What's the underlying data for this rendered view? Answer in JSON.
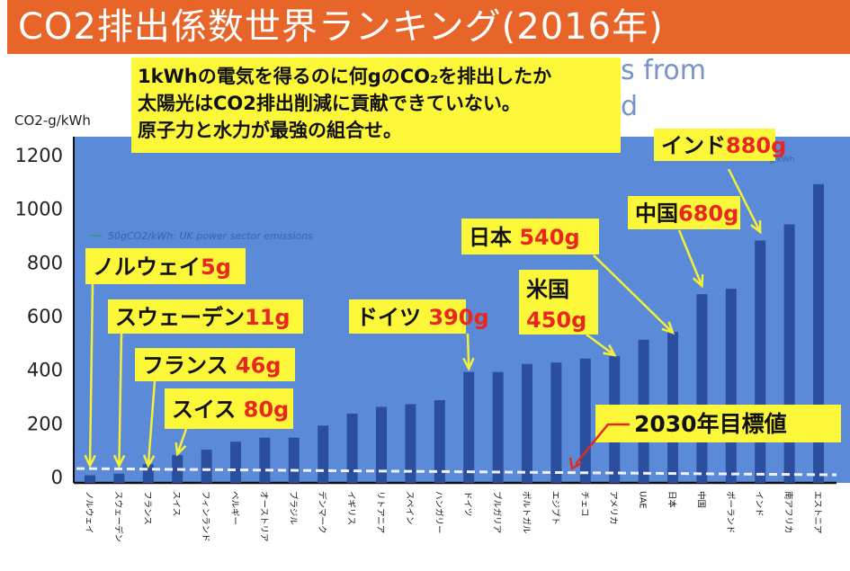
{
  "title": "CO2排出係数世界ランキング(2016年)",
  "colors": {
    "title_bg": "#e8652a",
    "plot_bg": "#5b8bd8",
    "bar": "#2c4e9e",
    "callout_bg": "#fdf73a",
    "value_red": "#e8281e",
    "arrow": "#f3f03a",
    "target_arrow": "#e02a1e"
  },
  "chart_data": {
    "type": "bar",
    "title": "CO2排出係数世界ランキング(2016年)",
    "ylabel": "CO2-g/kWh",
    "xlabel": "",
    "ylim": [
      0,
      1200
    ],
    "yticks": [
      0,
      200,
      400,
      600,
      800,
      1000,
      1200
    ],
    "grid": false,
    "categories": [
      "ノルウェイ",
      "スウェーデン",
      "フランス",
      "スイス",
      "フィンランド",
      "ベルギー",
      "オーストリア",
      "ブラジル",
      "デンマーク",
      "イギリス",
      "リトアニア",
      "スペイン",
      "ハンガリー",
      "ドイツ",
      "ブルガリア",
      "ポルトガル",
      "エジプト",
      "チェコ",
      "アメリカ",
      "UAE",
      "日本",
      "中国",
      "ポーランド",
      "インド",
      "南アフリカ",
      "エストニア"
    ],
    "values": [
      5,
      11,
      46,
      80,
      100,
      130,
      145,
      145,
      190,
      235,
      260,
      270,
      285,
      390,
      390,
      420,
      425,
      440,
      450,
      510,
      540,
      680,
      700,
      880,
      940,
      1090
    ],
    "target_line": {
      "label": "2030年目標値",
      "value": 40
    },
    "background_texts": [
      "s from",
      "d",
      "50gCO2/kWh: UK power sector emissions",
      "g/kWh"
    ],
    "note": [
      "1kWhの電気を得るのに何gのCO₂を排出したか",
      "太陽光はCO2排出削減に貢献できていない。",
      "原子力と水力が最強の組合せ。"
    ],
    "callouts": [
      {
        "name": "ノルウェイ",
        "value": "5g"
      },
      {
        "name": "スウェーデン",
        "value": "11g"
      },
      {
        "name": "フランス ",
        "value": "46g"
      },
      {
        "name": "スイス ",
        "value": "80g"
      },
      {
        "name": "ドイツ ",
        "value": "390g"
      },
      {
        "name": "米国",
        "value": "450g"
      },
      {
        "name": "日本 ",
        "value": "540g"
      },
      {
        "name": "中国",
        "value": "680g"
      },
      {
        "name": "インド",
        "value": "880g"
      }
    ]
  }
}
